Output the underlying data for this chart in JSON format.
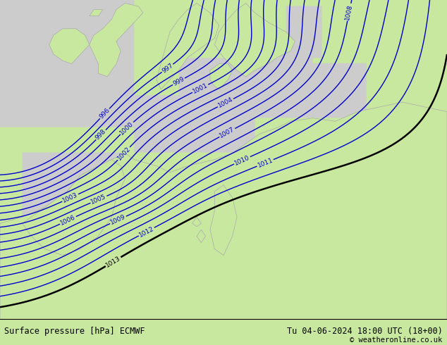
{
  "title_left": "Surface pressure [hPa] ECMWF",
  "title_right": "Tu 04-06-2024 18:00 UTC (18+00)",
  "copyright": "© weatheronline.co.uk",
  "bg_color": "#c8e8a0",
  "sea_color": "#cccccc",
  "land_color": "#c8e8a0",
  "coast_color": "#aaaaaa",
  "contour_color_blue": "#0000cc",
  "contour_color_black": "#000000",
  "bottom_bar_color": "#ffffff",
  "bottom_text_color": "#000000",
  "figsize": [
    6.34,
    4.9
  ],
  "dpi": 100
}
